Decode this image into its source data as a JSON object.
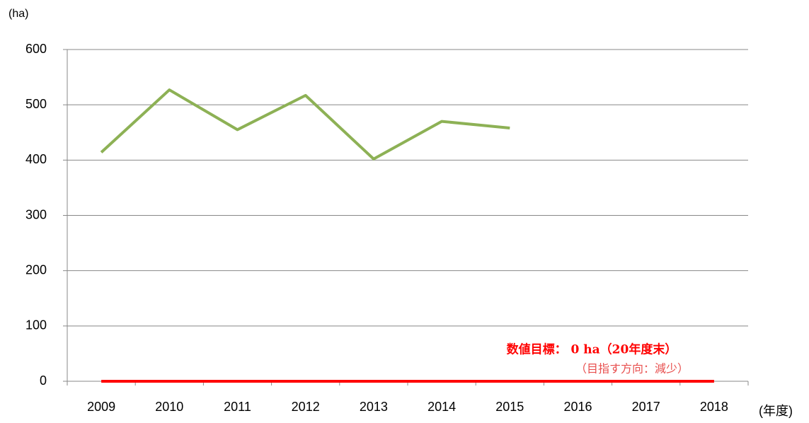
{
  "chart_data": {
    "type": "line",
    "y_label": "(ha)",
    "x_label": "(年度)",
    "categories": [
      "2009",
      "2010",
      "2011",
      "2012",
      "2013",
      "2014",
      "2015",
      "2016",
      "2017",
      "2018"
    ],
    "series": [
      {
        "color": "#8db155",
        "values": [
          414,
          527,
          455,
          517,
          402,
          470,
          458,
          null,
          null,
          null
        ]
      },
      {
        "color": "#ff0000",
        "values": [
          0,
          0,
          0,
          0,
          0,
          0,
          0,
          0,
          0,
          0
        ]
      }
    ],
    "ylim": [
      0,
      600
    ],
    "yticks": [
      0,
      100,
      200,
      300,
      400,
      500,
      600
    ],
    "grid": true,
    "annotations": [
      "数値目標： 0 ha（20年度末）",
      "（目指す方向：減少）"
    ]
  }
}
